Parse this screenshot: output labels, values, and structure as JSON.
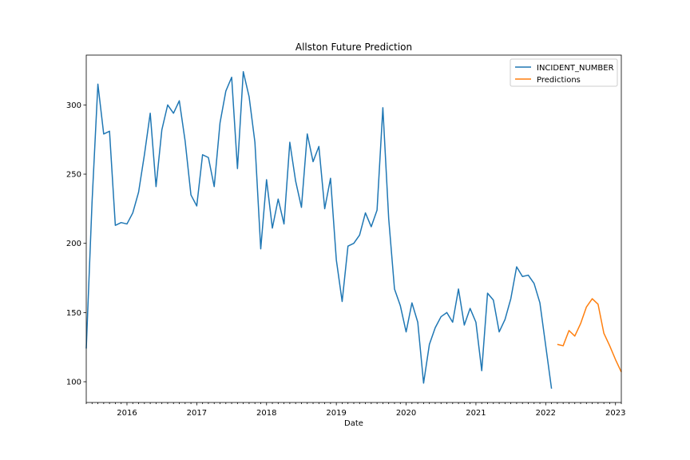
{
  "chart_data": {
    "type": "line",
    "title": "Allston Future Prediction",
    "xlabel": "Date",
    "ylabel": "",
    "xlim": [
      "2015-06",
      "2023-02"
    ],
    "ylim": [
      85,
      336
    ],
    "x_ticks": [
      "2016",
      "2017",
      "2018",
      "2019",
      "2020",
      "2021",
      "2022",
      "2023"
    ],
    "y_ticks": [
      100,
      150,
      200,
      250,
      300
    ],
    "legend_position": "top-right",
    "grid": false,
    "series": [
      {
        "name": "INCIDENT_NUMBER",
        "color": "#1f77b4",
        "x": [
          "2015-06",
          "2015-07",
          "2015-08",
          "2015-09",
          "2015-10",
          "2015-11",
          "2015-12",
          "2016-01",
          "2016-02",
          "2016-03",
          "2016-04",
          "2016-05",
          "2016-06",
          "2016-07",
          "2016-08",
          "2016-09",
          "2016-10",
          "2016-11",
          "2016-12",
          "2017-01",
          "2017-02",
          "2017-03",
          "2017-04",
          "2017-05",
          "2017-06",
          "2017-07",
          "2017-08",
          "2017-09",
          "2017-10",
          "2017-11",
          "2017-12",
          "2018-01",
          "2018-02",
          "2018-03",
          "2018-04",
          "2018-05",
          "2018-06",
          "2018-07",
          "2018-08",
          "2018-09",
          "2018-10",
          "2018-11",
          "2018-12",
          "2019-01",
          "2019-02",
          "2019-03",
          "2019-04",
          "2019-05",
          "2019-06",
          "2019-07",
          "2019-08",
          "2019-09",
          "2019-10",
          "2019-11",
          "2019-12",
          "2020-01",
          "2020-02",
          "2020-03",
          "2020-04",
          "2020-05",
          "2020-06",
          "2020-07",
          "2020-08",
          "2020-09",
          "2020-10",
          "2020-11",
          "2020-12",
          "2021-01",
          "2021-02",
          "2021-03",
          "2021-04",
          "2021-05",
          "2021-06",
          "2021-07",
          "2021-08",
          "2021-09",
          "2021-10",
          "2021-11",
          "2021-12",
          "2022-01",
          "2022-02"
        ],
        "values": [
          124,
          230,
          315,
          279,
          281,
          213,
          215,
          214,
          222,
          237,
          264,
          294,
          241,
          282,
          300,
          294,
          303,
          274,
          235,
          227,
          264,
          262,
          241,
          287,
          310,
          320,
          254,
          324,
          306,
          273,
          196,
          246,
          211,
          232,
          214,
          273,
          245,
          226,
          279,
          259,
          270,
          225,
          247,
          188,
          158,
          198,
          200,
          206,
          222,
          212,
          224,
          298,
          218,
          167,
          155,
          136,
          157,
          143,
          99,
          127,
          139,
          147,
          150,
          143,
          167,
          141,
          153,
          143,
          108,
          164,
          159,
          136,
          145,
          160,
          183,
          176,
          177,
          171,
          157,
          126,
          95
        ]
      },
      {
        "name": "Predictions",
        "color": "#ff7f0e",
        "x": [
          "2022-03",
          "2022-04",
          "2022-05",
          "2022-06",
          "2022-07",
          "2022-08",
          "2022-09",
          "2022-10",
          "2022-11",
          "2022-12",
          "2023-01",
          "2023-02"
        ],
        "values": [
          127,
          126,
          137,
          133,
          142,
          154,
          160,
          156,
          135,
          126,
          116,
          107
        ]
      }
    ]
  }
}
